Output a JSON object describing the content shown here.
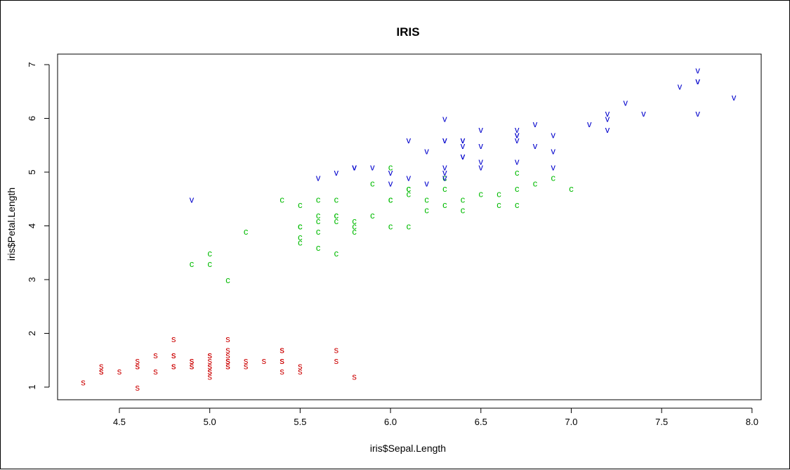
{
  "chart_data": {
    "type": "scatter",
    "title": "IRIS",
    "xlabel": "iris$Sepal.Length",
    "ylabel": "iris$Petal.Length",
    "xlim": [
      4.2,
      8.05
    ],
    "ylim": [
      0.75,
      7.2
    ],
    "xticks": [
      "4.5",
      "5.0",
      "5.5",
      "6.0",
      "6.5",
      "7.0",
      "7.5",
      "8.0"
    ],
    "yticks": [
      "1",
      "2",
      "3",
      "4",
      "5",
      "6",
      "7"
    ],
    "grid": false,
    "legend": "none",
    "series": [
      {
        "symbol": "s",
        "color": "#cc0000",
        "points": [
          [
            4.3,
            1.1
          ],
          [
            4.4,
            1.3
          ],
          [
            4.4,
            1.4
          ],
          [
            4.4,
            1.3
          ],
          [
            4.5,
            1.3
          ],
          [
            4.6,
            1.0
          ],
          [
            4.6,
            1.4
          ],
          [
            4.6,
            1.5
          ],
          [
            4.6,
            1.4
          ],
          [
            4.7,
            1.3
          ],
          [
            4.7,
            1.6
          ],
          [
            4.8,
            1.6
          ],
          [
            4.8,
            1.4
          ],
          [
            4.8,
            1.9
          ],
          [
            4.8,
            1.6
          ],
          [
            4.8,
            1.4
          ],
          [
            4.9,
            1.4
          ],
          [
            4.9,
            1.5
          ],
          [
            4.9,
            1.5
          ],
          [
            4.9,
            1.4
          ],
          [
            5.0,
            1.4
          ],
          [
            5.0,
            1.5
          ],
          [
            5.0,
            1.2
          ],
          [
            5.0,
            1.3
          ],
          [
            5.0,
            1.6
          ],
          [
            5.0,
            1.6
          ],
          [
            5.0,
            1.4
          ],
          [
            5.0,
            1.3
          ],
          [
            5.1,
            1.4
          ],
          [
            5.1,
            1.5
          ],
          [
            5.1,
            1.5
          ],
          [
            5.1,
            1.7
          ],
          [
            5.1,
            1.9
          ],
          [
            5.1,
            1.6
          ],
          [
            5.1,
            1.4
          ],
          [
            5.1,
            1.5
          ],
          [
            5.2,
            1.5
          ],
          [
            5.2,
            1.4
          ],
          [
            5.3,
            1.5
          ],
          [
            5.4,
            1.5
          ],
          [
            5.4,
            1.7
          ],
          [
            5.4,
            1.3
          ],
          [
            5.4,
            1.5
          ],
          [
            5.4,
            1.7
          ],
          [
            5.5,
            1.3
          ],
          [
            5.5,
            1.4
          ],
          [
            5.7,
            1.5
          ],
          [
            5.7,
            1.7
          ],
          [
            5.8,
            1.2
          ]
        ]
      },
      {
        "symbol": "c",
        "color": "#00bb00",
        "points": [
          [
            4.9,
            3.3
          ],
          [
            5.0,
            3.5
          ],
          [
            5.0,
            3.3
          ],
          [
            5.1,
            3.0
          ],
          [
            5.2,
            3.9
          ],
          [
            5.4,
            4.5
          ],
          [
            5.5,
            4.0
          ],
          [
            5.5,
            3.8
          ],
          [
            5.5,
            4.4
          ],
          [
            5.5,
            3.7
          ],
          [
            5.5,
            4.0
          ],
          [
            5.6,
            4.5
          ],
          [
            5.6,
            3.6
          ],
          [
            5.6,
            3.9
          ],
          [
            5.6,
            4.1
          ],
          [
            5.6,
            4.2
          ],
          [
            5.7,
            4.2
          ],
          [
            5.7,
            3.5
          ],
          [
            5.7,
            4.5
          ],
          [
            5.7,
            4.1
          ],
          [
            5.7,
            4.2
          ],
          [
            5.8,
            4.1
          ],
          [
            5.8,
            3.9
          ],
          [
            5.8,
            4.0
          ],
          [
            5.9,
            4.2
          ],
          [
            5.9,
            4.8
          ],
          [
            6.0,
            4.5
          ],
          [
            6.0,
            4.0
          ],
          [
            6.0,
            4.5
          ],
          [
            6.0,
            5.1
          ],
          [
            6.1,
            4.7
          ],
          [
            6.1,
            4.0
          ],
          [
            6.1,
            4.6
          ],
          [
            6.1,
            4.7
          ],
          [
            6.2,
            4.5
          ],
          [
            6.2,
            4.3
          ],
          [
            6.3,
            4.7
          ],
          [
            6.3,
            4.4
          ],
          [
            6.3,
            4.9
          ],
          [
            6.4,
            4.5
          ],
          [
            6.4,
            4.3
          ],
          [
            6.5,
            4.6
          ],
          [
            6.6,
            4.6
          ],
          [
            6.6,
            4.4
          ],
          [
            6.7,
            4.7
          ],
          [
            6.7,
            4.4
          ],
          [
            6.7,
            5.0
          ],
          [
            6.8,
            4.8
          ],
          [
            6.9,
            4.9
          ],
          [
            7.0,
            4.7
          ]
        ]
      },
      {
        "symbol": "v",
        "color": "#0000cc",
        "points": [
          [
            4.9,
            4.5
          ],
          [
            5.6,
            4.9
          ],
          [
            5.7,
            5.0
          ],
          [
            5.8,
            5.1
          ],
          [
            5.8,
            5.1
          ],
          [
            5.8,
            5.1
          ],
          [
            5.9,
            5.1
          ],
          [
            6.0,
            5.0
          ],
          [
            6.0,
            4.8
          ],
          [
            6.1,
            5.6
          ],
          [
            6.1,
            4.9
          ],
          [
            6.2,
            5.4
          ],
          [
            6.2,
            4.8
          ],
          [
            6.3,
            6.0
          ],
          [
            6.3,
            5.6
          ],
          [
            6.3,
            5.1
          ],
          [
            6.3,
            5.0
          ],
          [
            6.3,
            4.9
          ],
          [
            6.3,
            5.6
          ],
          [
            6.4,
            5.5
          ],
          [
            6.4,
            5.3
          ],
          [
            6.4,
            5.6
          ],
          [
            6.4,
            5.6
          ],
          [
            6.4,
            5.3
          ],
          [
            6.5,
            5.8
          ],
          [
            6.5,
            5.5
          ],
          [
            6.5,
            5.1
          ],
          [
            6.5,
            5.2
          ],
          [
            6.7,
            5.8
          ],
          [
            6.7,
            5.7
          ],
          [
            6.7,
            5.6
          ],
          [
            6.7,
            5.2
          ],
          [
            6.7,
            5.7
          ],
          [
            6.8,
            5.9
          ],
          [
            6.8,
            5.5
          ],
          [
            6.9,
            5.7
          ],
          [
            6.9,
            5.1
          ],
          [
            6.9,
            5.4
          ],
          [
            7.1,
            5.9
          ],
          [
            7.2,
            6.1
          ],
          [
            7.2,
            6.0
          ],
          [
            7.2,
            5.8
          ],
          [
            7.3,
            6.3
          ],
          [
            7.4,
            6.1
          ],
          [
            7.6,
            6.6
          ],
          [
            7.7,
            6.7
          ],
          [
            7.7,
            6.9
          ],
          [
            7.7,
            6.7
          ],
          [
            7.7,
            6.1
          ],
          [
            7.9,
            6.4
          ]
        ]
      }
    ]
  }
}
